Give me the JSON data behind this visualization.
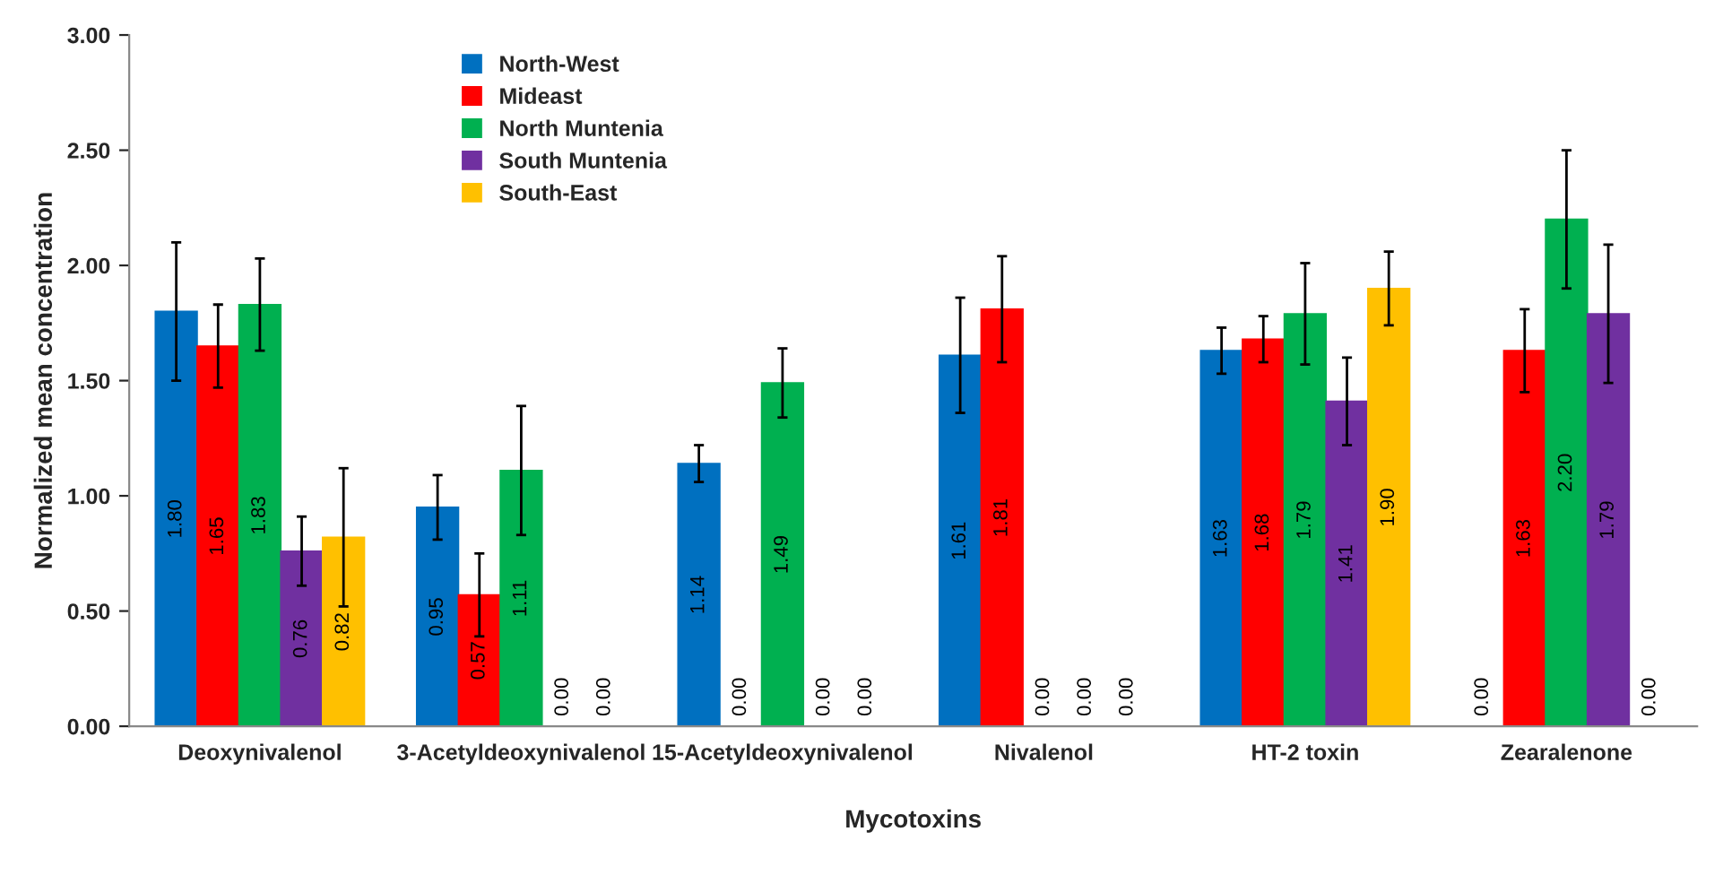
{
  "chart_data": {
    "type": "bar",
    "xlabel": "Mycotoxins",
    "ylabel": "Normalized mean concentration",
    "categories": [
      "Deoxynivalenol",
      "3-Acetyldeoxynivalenol",
      "15-Acetyldeoxynivalenol",
      "Nivalenol",
      "HT-2 toxin",
      "Zearalenone"
    ],
    "series": [
      {
        "name": "North-West",
        "color": "#0070c0",
        "values": [
          1.8,
          0.95,
          1.14,
          1.61,
          1.63,
          0.0
        ],
        "errors": [
          0.3,
          0.14,
          0.08,
          0.25,
          0.1,
          null
        ],
        "value_labels": [
          "1.80",
          "0.95",
          "1.14",
          "1.61",
          "1.63",
          "0.00"
        ]
      },
      {
        "name": "Mideast",
        "color": "#ff0000",
        "values": [
          1.65,
          0.57,
          0.0,
          1.81,
          1.68,
          1.63
        ],
        "errors": [
          0.18,
          0.18,
          null,
          0.23,
          0.1,
          0.18
        ],
        "value_labels": [
          "1.65",
          "0.57",
          "0.00",
          "1.81",
          "1.68",
          "1.63"
        ]
      },
      {
        "name": "North Muntenia",
        "color": "#00b050",
        "values": [
          1.83,
          1.11,
          1.49,
          0.0,
          1.79,
          2.2
        ],
        "errors": [
          0.2,
          0.28,
          0.15,
          null,
          0.22,
          0.3
        ],
        "value_labels": [
          "1.83",
          "1.11",
          "1.49",
          "0.00",
          "1.79",
          "2.20"
        ]
      },
      {
        "name": "South Muntenia",
        "color": "#7030a0",
        "values": [
          0.76,
          0.0,
          0.0,
          0.0,
          1.41,
          1.79
        ],
        "errors": [
          0.15,
          null,
          null,
          null,
          0.19,
          0.3
        ],
        "value_labels": [
          "0.76",
          "0.00",
          "0.00",
          "0.00",
          "1.41",
          "1.79"
        ]
      },
      {
        "name": "South-East",
        "color": "#ffc000",
        "values": [
          0.82,
          0.0,
          0.0,
          0.0,
          1.9,
          0.0
        ],
        "errors": [
          0.3,
          null,
          null,
          null,
          0.16,
          null
        ],
        "value_labels": [
          "0.82",
          "0.00",
          "0.00",
          "0.00",
          "1.90",
          "0.00"
        ]
      }
    ],
    "ylim": [
      0,
      3
    ],
    "yticks": [
      {
        "value": 0,
        "label": "0.00"
      },
      {
        "value": 0.5,
        "label": "0.50"
      },
      {
        "value": 1,
        "label": "1.00"
      },
      {
        "value": 1.5,
        "label": "1.50"
      },
      {
        "value": 2,
        "label": "2.00"
      },
      {
        "value": 2.5,
        "label": "2.50"
      },
      {
        "value": 3,
        "label": "3.00"
      }
    ],
    "legend": "top left",
    "grid": false
  }
}
